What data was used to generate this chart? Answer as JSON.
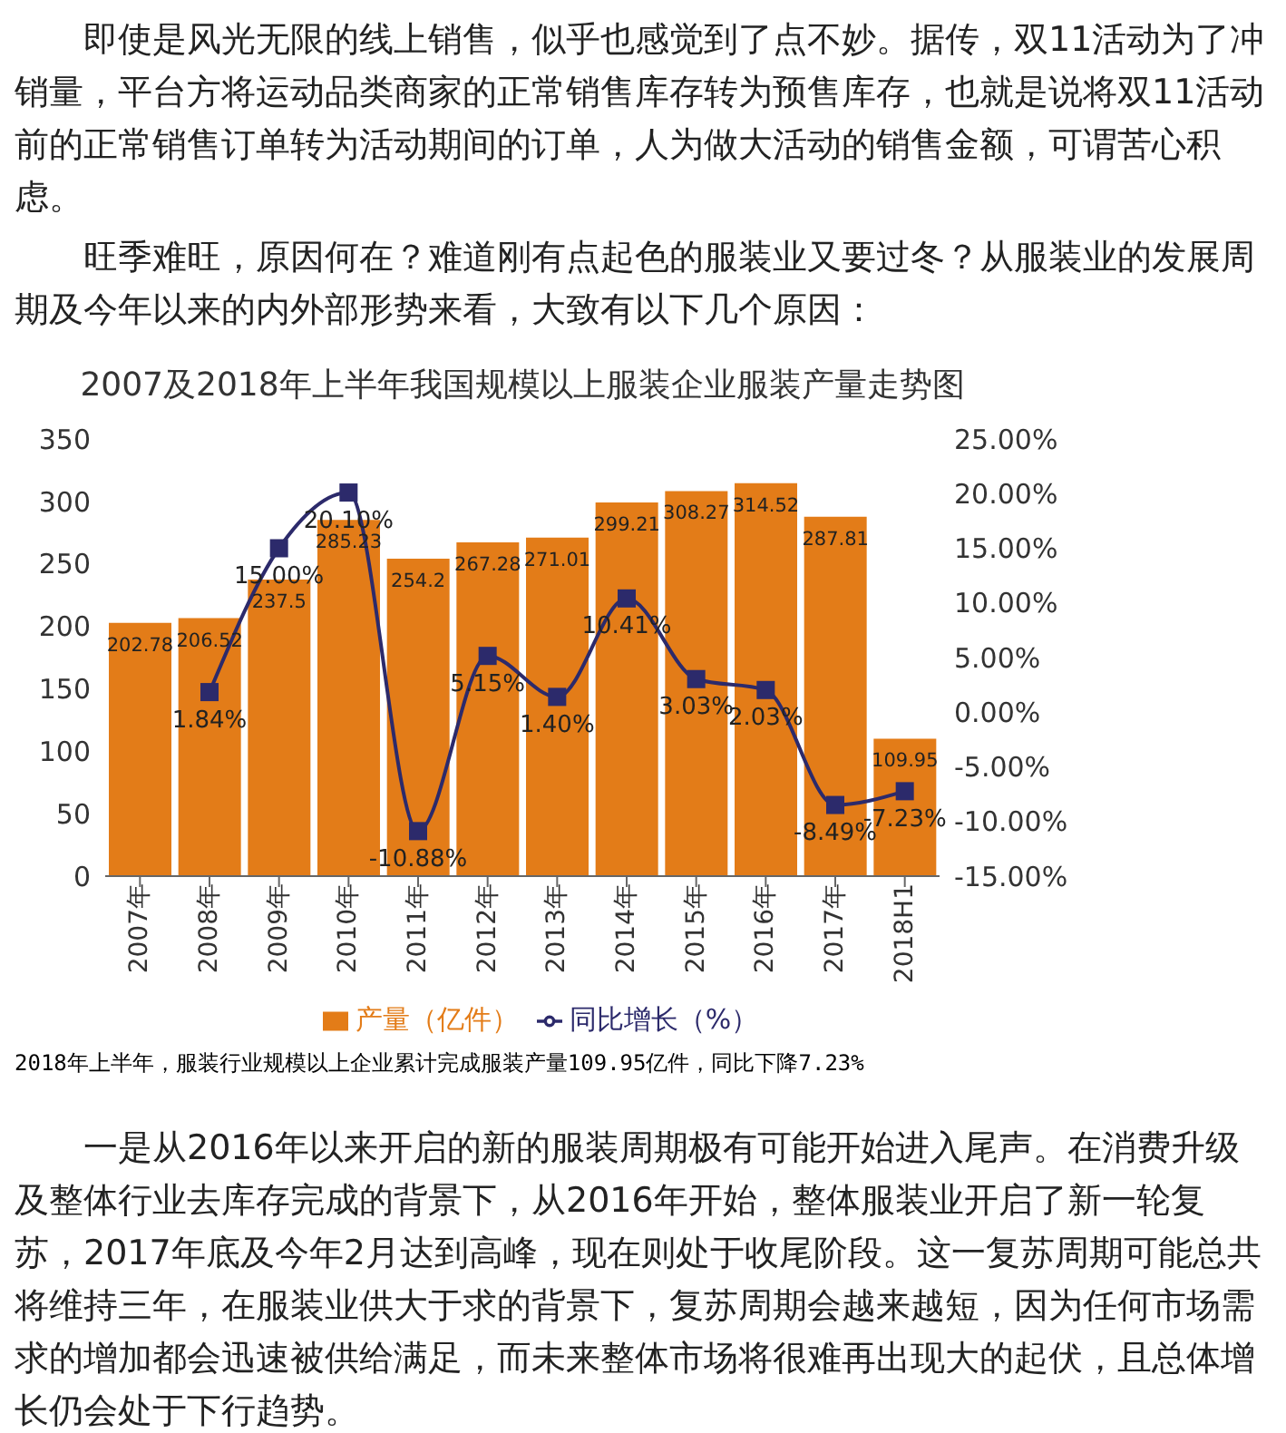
{
  "chart_data": {
    "type": "bar",
    "title": "2007及2018年上半年我国规模以上服装企业服装产量走势图",
    "categories": [
      "2007年",
      "2008年",
      "2009年",
      "2010年",
      "2011年",
      "2012年",
      "2013年",
      "2014年",
      "2015年",
      "2016年",
      "2017年",
      "2018H1"
    ],
    "series": [
      {
        "name": "产量（亿件）",
        "color": "#e37c18",
        "values": [
          202.78,
          206.52,
          237.5,
          285.23,
          254.2,
          267.28,
          271.01,
          299.21,
          308.27,
          314.52,
          287.81,
          109.95
        ],
        "value_labels": [
          "202.78",
          "206.52",
          "237.5",
          "285.23",
          "254.2",
          "267.28",
          "271.01",
          "299.21",
          "308.27",
          "314.52",
          "287.81",
          "109.95"
        ]
      },
      {
        "name": "同比增长（%）",
        "type": "line",
        "axis": "y2",
        "color": "#2c2a6b",
        "marker": "square",
        "values": [
          null,
          1.84,
          15.0,
          20.1,
          -10.88,
          5.15,
          1.4,
          10.41,
          3.03,
          2.03,
          -8.49,
          -7.23
        ],
        "value_labels": [
          null,
          "1.84%",
          "15.00%",
          "20.10%",
          "-10.88%",
          "5.15%",
          "1.40%",
          "10.41%",
          "3.03%",
          "2.03%",
          "-8.49%",
          "-7.23%"
        ]
      }
    ],
    "ylim": [
      0,
      350
    ],
    "yticks": [
      0,
      50,
      100,
      150,
      200,
      250,
      300,
      350
    ],
    "y2lim": [
      -15,
      25
    ],
    "y2ticks": [
      {
        "value": -15,
        "label": "-15.00%"
      },
      {
        "value": -10,
        "label": "-10.00%"
      },
      {
        "value": -5,
        "label": "-5.00%"
      },
      {
        "value": 0,
        "label": "0.00%"
      },
      {
        "value": 5,
        "label": "5.00%"
      },
      {
        "value": 10,
        "label": "10.00%"
      },
      {
        "value": 15,
        "label": "15.00%"
      },
      {
        "value": 20,
        "label": "20.00%"
      },
      {
        "value": 25,
        "label": "25.00%"
      }
    ],
    "grid": false,
    "legend": "bottom",
    "annotations": [
      "即使是风光无限的线上销售，似乎也感觉到了点不妙。据传，双11活动为了冲销量，平台方将运动品类商家的正常销售库存转为预售库存，也就是说将双11活动前的正常销售订单转为活动期间的订单，人为做大活动的销售金额，可谓苦心积虑。",
      "旺季难旺，原因何在？难道刚有点起色的服装业又要过冬？从服装业的发展周期及今年以来的内外部形势来看，大致有以下几个原因：",
      "2018年上半年，服装行业规模以上企业累计完成服装产量109.95亿件，同比下降7.23%",
      "一是从2016年以来开启的新的服装周期极有可能开始进入尾声。在消费升级及整体行业去库存完成的背景下，从2016年开始，整体服装业开启了新一轮复苏，2017年底及今年2月达到高峰，现在则处于收尾阶段。这一复苏周期可能总共将维持三年，在服装业供大于求的背景下，复苏周期会越来越短，因为任何市场需求的增加都会迅速被供给满足，而未来整体市场将很难再出现大的起伏，且总体增长仍会处于下行趋势。"
    ]
  }
}
